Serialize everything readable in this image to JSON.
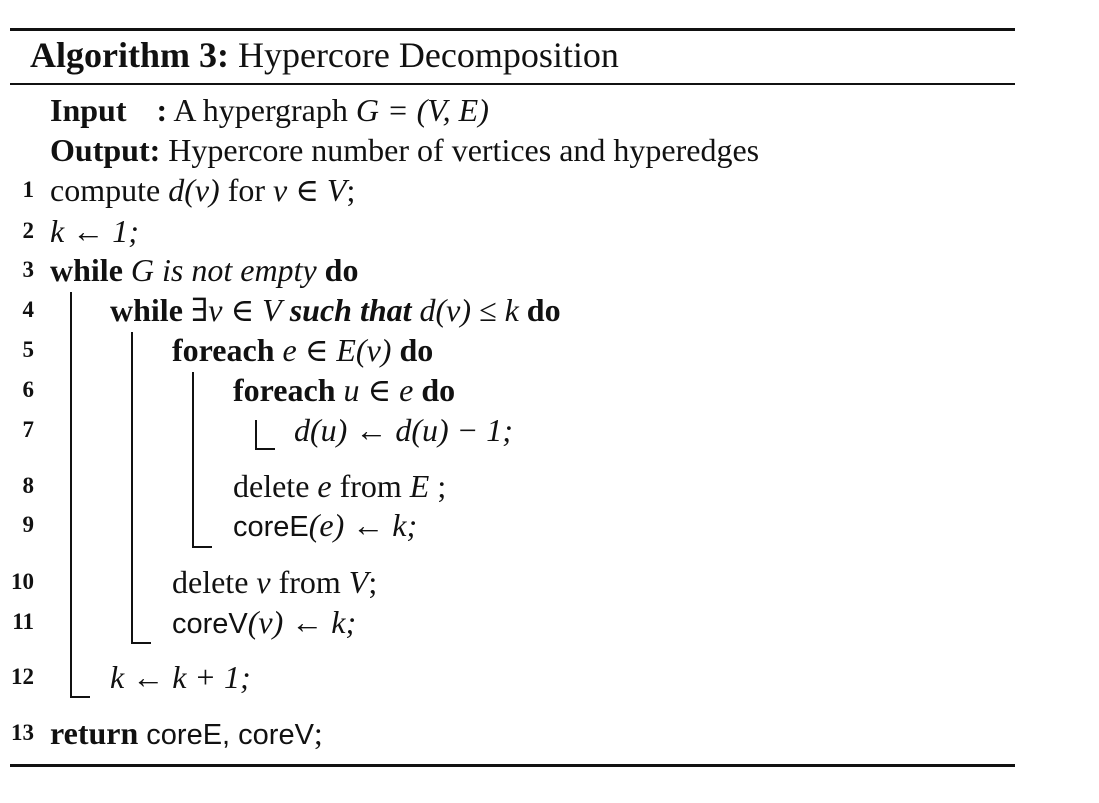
{
  "algorithm": {
    "label": "Algorithm 3:",
    "title": "Hypercore Decomposition",
    "input_label": "Input",
    "input_sep": ":",
    "input_text_pre": "A hypergraph",
    "input_math": "G = (V, E)",
    "output_label": "Output:",
    "output_text": "Hypercore number of vertices and hyperedges"
  },
  "lines": [
    {
      "num": "1",
      "parts": [
        "compute",
        "d(v)",
        "for",
        "v ∈ V",
        ";"
      ]
    },
    {
      "num": "2",
      "parts": [
        "k ← 1;"
      ]
    },
    {
      "num": "3",
      "parts": [
        "while",
        "G",
        "is not empty",
        "do"
      ]
    },
    {
      "num": "4",
      "parts": [
        "while",
        "∃v ∈ V",
        "such that",
        "d(v) ≤ k",
        "do"
      ]
    },
    {
      "num": "5",
      "parts": [
        "foreach",
        "e ∈ E(v)",
        "do"
      ]
    },
    {
      "num": "6",
      "parts": [
        "foreach",
        "u ∈ e",
        "do"
      ]
    },
    {
      "num": "7",
      "parts": [
        "d(u) ← d(u) − 1;"
      ]
    },
    {
      "num": "8",
      "parts": [
        "delete",
        "e",
        "from",
        "E",
        ";"
      ]
    },
    {
      "num": "9",
      "parts": [
        "coreE",
        "(e) ← k;"
      ]
    },
    {
      "num": "10",
      "parts": [
        "delete",
        "v",
        "from",
        "V",
        ";"
      ]
    },
    {
      "num": "11",
      "parts": [
        "coreV",
        "(v) ← k;"
      ]
    },
    {
      "num": "12",
      "parts": [
        "k ← k + 1;"
      ]
    },
    {
      "num": "13",
      "parts": [
        "return",
        "coreE, coreV",
        ";"
      ]
    }
  ]
}
